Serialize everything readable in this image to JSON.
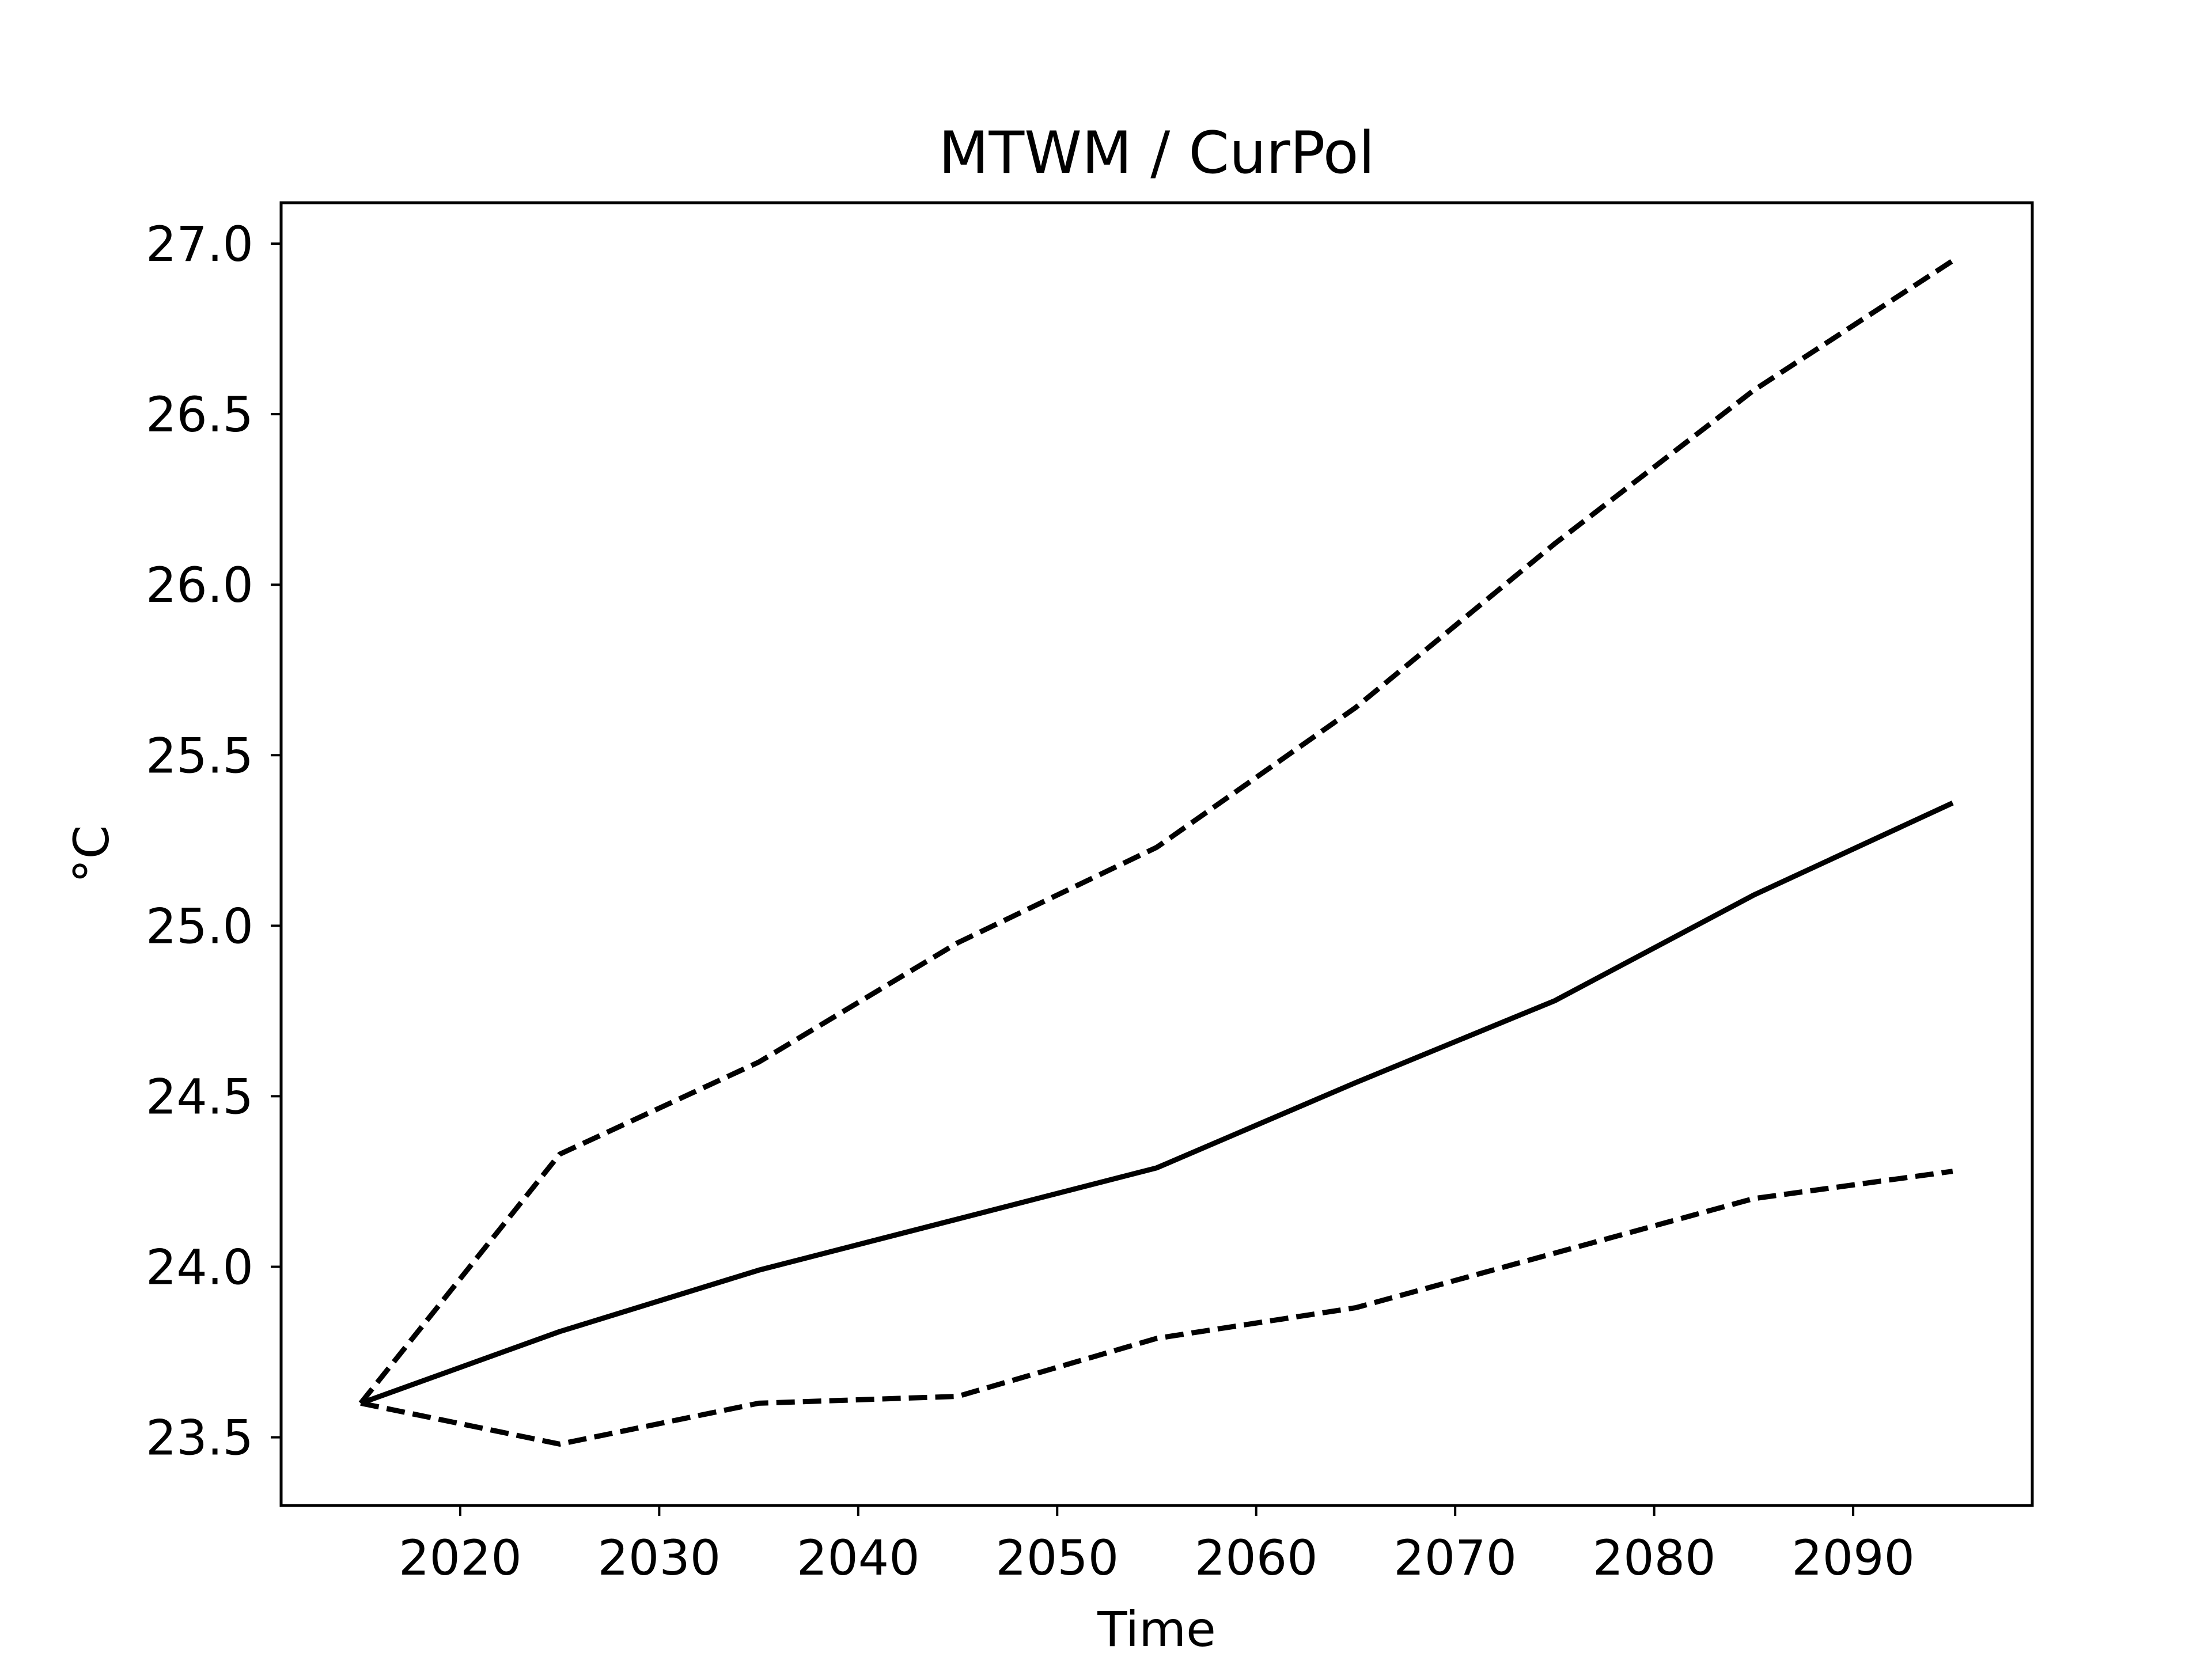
{
  "chart_data": {
    "type": "line",
    "title": "MTWM / CurPol",
    "xlabel": "Time",
    "ylabel": "°C",
    "xlim": [
      2011,
      2099
    ],
    "ylim": [
      23.3,
      27.12
    ],
    "xticks": [
      2020,
      2030,
      2040,
      2050,
      2060,
      2070,
      2080,
      2090
    ],
    "yticks": [
      23.5,
      24.0,
      24.5,
      25.0,
      25.5,
      26.0,
      26.5,
      27.0
    ],
    "xtick_labels": [
      "2020",
      "2030",
      "2040",
      "2050",
      "2060",
      "2070",
      "2080",
      "2090"
    ],
    "ytick_labels": [
      "23.5",
      "24.0",
      "24.5",
      "25.0",
      "25.5",
      "26.0",
      "26.5",
      "27.0"
    ],
    "grid": false,
    "x": [
      2015,
      2025,
      2035,
      2045,
      2055,
      2065,
      2075,
      2085,
      2095
    ],
    "series": [
      {
        "style": "solid",
        "color": "#000000",
        "values": [
          23.6,
          23.81,
          23.99,
          24.14,
          24.29,
          24.54,
          24.78,
          25.09,
          25.36
        ]
      },
      {
        "style": "dashed",
        "color": "#000000",
        "values": [
          23.6,
          24.33,
          24.6,
          24.95,
          25.23,
          25.64,
          26.12,
          26.57,
          26.95
        ]
      },
      {
        "style": "dashed",
        "color": "#000000",
        "values": [
          23.6,
          23.48,
          23.6,
          23.62,
          23.79,
          23.88,
          24.04,
          24.2,
          24.28
        ]
      }
    ]
  }
}
